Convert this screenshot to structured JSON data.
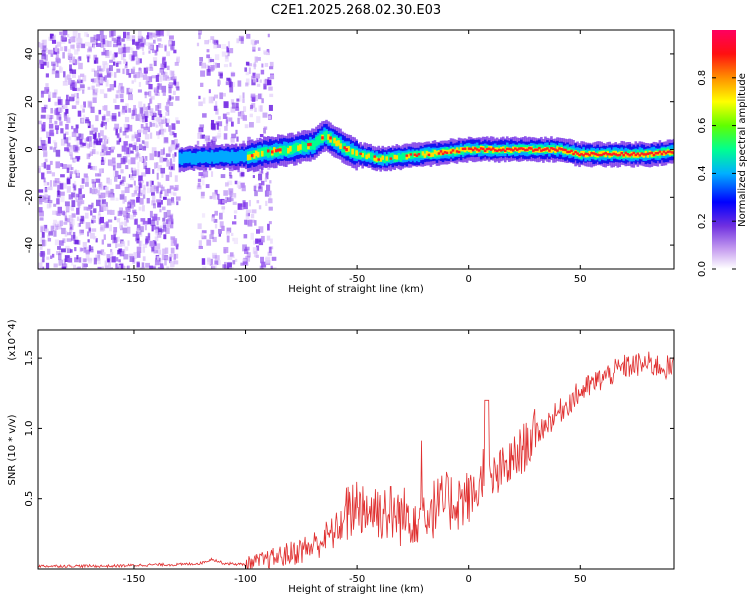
{
  "chart_data": [
    {
      "type": "heatmap",
      "title": "C2E1.2025.268.02.30.E03",
      "xlabel": "Height of straight line (km)",
      "ylabel": "Frequency (Hz)",
      "xlim": [
        -193,
        92
      ],
      "ylim": [
        -50,
        50
      ],
      "xticks": [
        -150,
        -100,
        -50,
        0,
        50
      ],
      "yticks": [
        -40,
        -20,
        0,
        20,
        40
      ],
      "colorbar": {
        "label": "Normalized spectral amplitude",
        "range": [
          0,
          1
        ],
        "ticks": [
          0.0,
          0.2,
          0.4,
          0.6,
          0.8
        ],
        "colors": [
          "#ffffff",
          "#b060f0",
          "#0000ff",
          "#00c0ff",
          "#00ff80",
          "#80ff00",
          "#ffff00",
          "#ff8000",
          "#ff0000",
          "#ff0080"
        ]
      },
      "ridge": {
        "x": [
          -130,
          -115,
          -100,
          -90,
          -80,
          -70,
          -65,
          -60,
          -55,
          -50,
          -40,
          -30,
          -20,
          -10,
          0,
          10,
          20,
          30,
          40,
          50,
          60,
          70,
          80,
          90
        ],
        "freq": [
          -4,
          -3,
          -3,
          -1,
          0,
          2,
          6,
          3,
          0,
          -2,
          -4,
          -3,
          -2,
          -1,
          0,
          0,
          0,
          0,
          0,
          -2,
          -2,
          -2,
          -2,
          -1
        ]
      }
    },
    {
      "type": "line",
      "xlabel": "Height of straight line (km)",
      "ylabel": "SNR (10 * v/v)",
      "yscale_label": "(x10^4)",
      "xlim": [
        -193,
        92
      ],
      "ylim": [
        0,
        1.7
      ],
      "xticks": [
        -150,
        -100,
        -50,
        0,
        50
      ],
      "yticks": [
        0.5,
        1.0,
        1.5
      ],
      "color": "#e03030",
      "series": [
        {
          "name": "SNR",
          "x": [
            -193,
            -180,
            -160,
            -140,
            -130,
            -120,
            -115,
            -110,
            -100,
            -90,
            -80,
            -70,
            -60,
            -55,
            -50,
            -45,
            -40,
            -30,
            -20,
            -10,
            0,
            5,
            8,
            10,
            20,
            30,
            40,
            50,
            60,
            70,
            80,
            90
          ],
          "y": [
            0.02,
            0.02,
            0.02,
            0.03,
            0.03,
            0.04,
            0.07,
            0.04,
            0.03,
            0.06,
            0.1,
            0.15,
            0.25,
            0.35,
            0.45,
            0.4,
            0.4,
            0.35,
            0.38,
            0.45,
            0.48,
            0.55,
            0.85,
            0.6,
            0.75,
            0.95,
            1.1,
            1.25,
            1.35,
            1.43,
            1.45,
            1.42
          ]
        }
      ]
    }
  ]
}
